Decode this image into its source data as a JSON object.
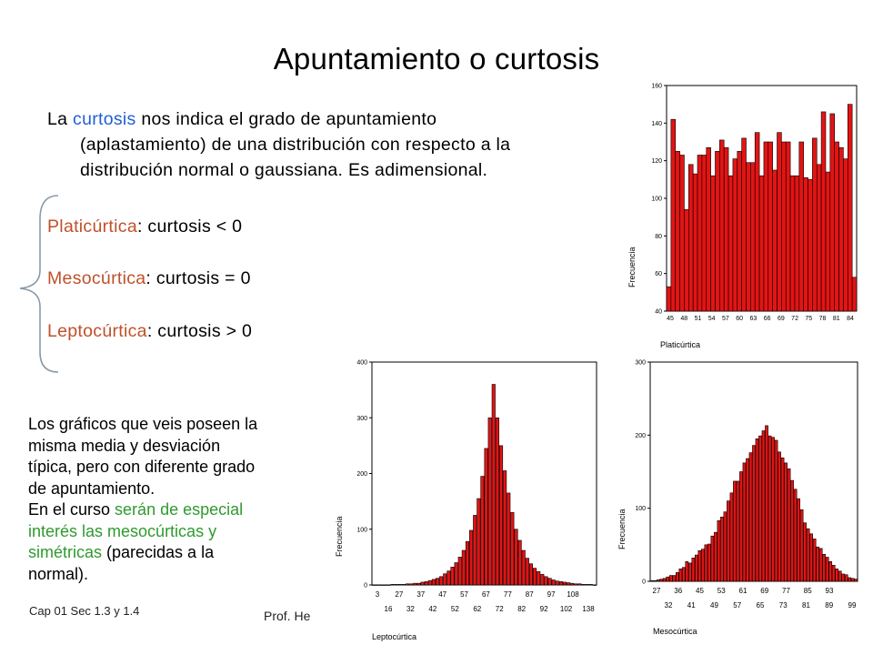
{
  "slide": {
    "title": "Apuntamiento o curtosis",
    "para_start": "La ",
    "para_term": "curtosis",
    "para_line1_rest": " nos indica el grado de apuntamiento",
    "para_line2": "(aplastamiento) de una distribución con respecto a la",
    "para_line3": "distribución normal o gaussiana. Es adimensional.",
    "types": [
      {
        "name": "Platicúrtica",
        "rule": ": curtosis < 0"
      },
      {
        "name": "Mesocúrtica",
        "rule": ": curtosis = 0"
      },
      {
        "name": "Leptocúrtica",
        "rule": ": curtosis > 0"
      }
    ],
    "note_line1": "Los gráficos que veis poseen la",
    "note_line2": "misma  media y desviación",
    "note_line3": "típica, pero con diferente grado",
    "note_line4": "de apuntamiento.",
    "note_line5_a": "En el curso ",
    "note_line5_b": "serán de especial",
    "note_line6": "interés las mesocúrticas y",
    "note_line7_a": "simétricas",
    "note_line7_b": " (parecidas a la",
    "note_line8": "normal).",
    "footer_left": "Cap 01 Sec 1.3  y 1.4",
    "footer_mid": "Prof. He"
  },
  "colors": {
    "term_blue": "#1f5fd6",
    "type_orange": "#c0502a",
    "note_green": "#2f9a2f",
    "bar_fill": "#e31414",
    "bar_stroke": "#000000"
  },
  "chart_data": [
    {
      "type": "bar",
      "title": "",
      "xlabel": "Platicúrtica",
      "ylabel": "Frecuencia",
      "ylim": [
        40,
        160
      ],
      "yticks": [
        40,
        60,
        80,
        100,
        120,
        140,
        160
      ],
      "xtick_labels": [
        "45",
        "48",
        "51",
        "54",
        "57",
        "60",
        "63",
        "66",
        "69",
        "72",
        "75",
        "78",
        "81",
        "84"
      ],
      "values": [
        53,
        142,
        125,
        123,
        94,
        118,
        113,
        123,
        123,
        127,
        112,
        125,
        131,
        127,
        112,
        121,
        125,
        132,
        119,
        119,
        135,
        112,
        130,
        130,
        115,
        135,
        130,
        130,
        112,
        112,
        130,
        111,
        110,
        132,
        118,
        146,
        114,
        145,
        130,
        127,
        121,
        150,
        58
      ]
    },
    {
      "type": "bar",
      "title": "",
      "xlabel": "Leptocúrtica",
      "ylabel": "Frecuencia",
      "ylim": [
        0,
        400
      ],
      "yticks": [
        0,
        100,
        200,
        300,
        400
      ],
      "xtick_labels_top": [
        "3",
        "27",
        "37",
        "47",
        "57",
        "67",
        "77",
        "87",
        "97",
        "108"
      ],
      "xtick_labels_bottom": [
        "16",
        "32",
        "42",
        "52",
        "62",
        "72",
        "82",
        "92",
        "102",
        "138"
      ],
      "values": [
        0,
        0,
        0,
        0,
        0,
        1,
        1,
        1,
        1,
        2,
        2,
        3,
        3,
        5,
        6,
        8,
        10,
        12,
        15,
        20,
        25,
        32,
        40,
        50,
        62,
        78,
        98,
        125,
        155,
        195,
        245,
        300,
        360,
        300,
        250,
        205,
        165,
        130,
        100,
        80,
        62,
        48,
        38,
        30,
        24,
        19,
        15,
        12,
        9,
        7,
        6,
        5,
        4,
        3,
        2,
        2,
        1,
        1,
        1,
        0
      ]
    },
    {
      "type": "bar",
      "title": "",
      "xlabel": "Mesocúrtica",
      "ylabel": "Frecuencia",
      "ylim": [
        0,
        300
      ],
      "yticks": [
        0,
        100,
        200,
        300
      ],
      "xtick_labels_top": [
        "27",
        "36",
        "45",
        "53",
        "61",
        "69",
        "77",
        "85",
        "93"
      ],
      "xtick_labels_bottom": [
        "32",
        "41",
        "49",
        "57",
        "65",
        "73",
        "81",
        "89",
        "99"
      ],
      "values": [
        1,
        1,
        2,
        3,
        4,
        6,
        8,
        8,
        12,
        17,
        19,
        27,
        25,
        32,
        36,
        42,
        44,
        50,
        51,
        62,
        67,
        83,
        88,
        95,
        110,
        121,
        137,
        137,
        150,
        162,
        168,
        176,
        186,
        195,
        199,
        206,
        213,
        199,
        197,
        193,
        177,
        169,
        162,
        154,
        138,
        126,
        113,
        98,
        80,
        72,
        65,
        58,
        47,
        45,
        37,
        33,
        27,
        22,
        17,
        14,
        10,
        9,
        5,
        4,
        3
      ]
    }
  ]
}
